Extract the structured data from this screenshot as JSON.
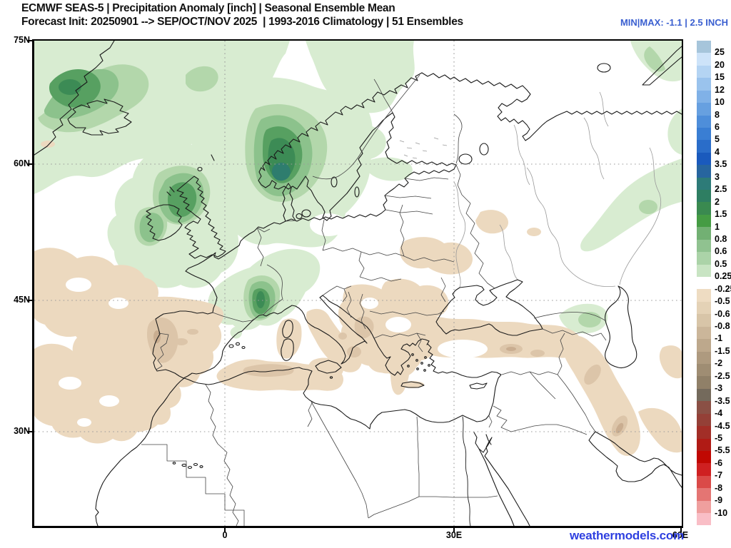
{
  "header": {
    "title_line1": "ECMWF SEAS-5 | Precipitation Anomaly [inch] | Seasonal Ensemble Mean",
    "title_line2": "Forecast Init: 20250901 --> SEP/OCT/NOV 2025  | 1993-2016 Climatology | 51 Ensembles",
    "minmax": "MIN|MAX: -1.1 | 2.5 INCH"
  },
  "axes": {
    "lat_labels": [
      "75N",
      "60N",
      "45N",
      "30N"
    ],
    "lon_labels": [
      "0",
      "30E",
      "60E"
    ]
  },
  "colorbar": {
    "labels": [
      "25",
      "20",
      "15",
      "12",
      "10",
      "8",
      "6",
      "5",
      "4",
      "3.5",
      "3",
      "2.5",
      "2",
      "1.5",
      "1",
      "0.8",
      "0.6",
      "0.5",
      "0.25",
      "-0.25",
      "-0.5",
      "-0.6",
      "-0.8",
      "-1",
      "-1.5",
      "-2",
      "-2.5",
      "-3",
      "-3.5",
      "-4",
      "-4.5",
      "-5",
      "-5.5",
      "-6",
      "-7",
      "-8",
      "-9",
      "-10"
    ],
    "segment_colors": [
      "#a6c5db",
      "#cde3f9",
      "#b4d4f3",
      "#9ac3ed",
      "#80b1e7",
      "#67a0e0",
      "#4e8eda",
      "#3a7ed3",
      "#2a6dc9",
      "#1a5abd",
      "#27659f",
      "#2d7b78",
      "#2e7e62",
      "#3a8a50",
      "#459c44",
      "#72b073",
      "#90c290",
      "#abd3a8",
      "#c8e4c3",
      "#ffffff",
      "#eedcc2",
      "#e4d2b6",
      "#d8c5a8",
      "#cbb69a",
      "#bda88c",
      "#ae9a7f",
      "#9f8d73",
      "#908068",
      "#746a5c",
      "#8a5045",
      "#944037",
      "#a22e27",
      "#b01b15",
      "#c00802",
      "#cf2021",
      "#da4a48",
      "#e47573",
      "#ef9f9e",
      "#f9bec6"
    ]
  },
  "palette": {
    "green_1": "#d8ecd1",
    "green_2": "#b3d7ab",
    "green_3": "#8cc28c",
    "green_4": "#57a061",
    "green_5": "#3c8b55",
    "green_6": "#2e7d6e",
    "tan_1": "#ecd9bf",
    "tan_2": "#dcc5a9",
    "tan_3": "#c9ad90",
    "white_hole": "#ffffff",
    "coast": "#1a1a1a",
    "border": "#444444",
    "river": "#999999",
    "grid": "#9b9b9b"
  },
  "colors": {
    "minmax_text": "#3a5fd0",
    "watermark_text": "#2e3fe0",
    "title_text": "#111111"
  },
  "watermark": "weathermodels.com"
}
